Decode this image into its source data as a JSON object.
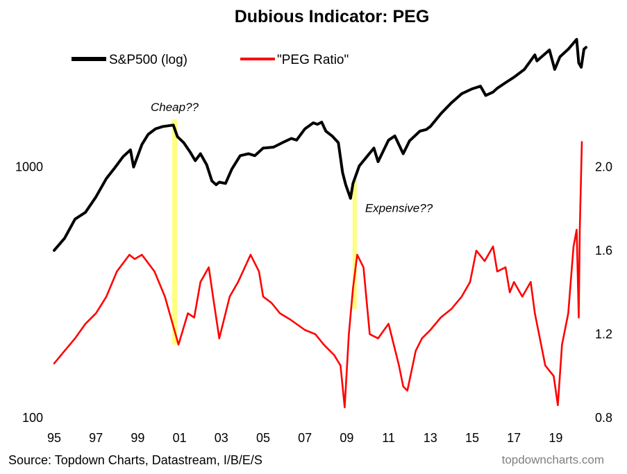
{
  "chart_data": {
    "type": "line",
    "title": "Dubious Indicator: PEG",
    "source": "Source: Topdown Charts, Datastream, I/B/E/S",
    "brand": "topdowncharts.com",
    "x_tick_labels": [
      "95",
      "97",
      "99",
      "01",
      "03",
      "05",
      "07",
      "09",
      "11",
      "13",
      "15",
      "17",
      "19"
    ],
    "x_tick_years": [
      1995,
      1997,
      1999,
      2001,
      2003,
      2005,
      2007,
      2009,
      2011,
      2013,
      2015,
      2017,
      2019
    ],
    "x_range": [
      1995.0,
      2020.25
    ],
    "left_axis": {
      "scale": "log",
      "range": [
        100,
        3162
      ],
      "ticks": [
        100,
        1000
      ],
      "tick_labels": [
        "100",
        "1000"
      ]
    },
    "right_axis": {
      "scale": "linear",
      "range": [
        0.8,
        2.6
      ],
      "ticks": [
        0.8,
        1.2,
        1.6,
        2.0
      ],
      "tick_labels": [
        "0.8",
        "1.2",
        "1.6",
        "2.0"
      ]
    },
    "legend_position": "top",
    "grid": false,
    "series": [
      {
        "name": "S&P500 (log)",
        "axis": "left",
        "color": "#000000",
        "x": [
          1995.0,
          1995.5,
          1996.0,
          1996.5,
          1997.0,
          1997.5,
          1997.85,
          1998.3,
          1998.65,
          1998.8,
          1999.2,
          1999.5,
          1999.85,
          2000.2,
          2000.7,
          2000.9,
          2001.2,
          2001.5,
          2001.75,
          2002.0,
          2002.3,
          2002.55,
          2002.75,
          2002.9,
          2003.2,
          2003.5,
          2003.9,
          2004.3,
          2004.6,
          2005.0,
          2005.5,
          2006.0,
          2006.35,
          2006.6,
          2007.0,
          2007.4,
          2007.6,
          2007.8,
          2008.0,
          2008.3,
          2008.6,
          2008.8,
          2008.95,
          2009.18,
          2009.3,
          2009.6,
          2010.0,
          2010.3,
          2010.5,
          2011.0,
          2011.3,
          2011.7,
          2012.0,
          2012.5,
          2012.8,
          2013.0,
          2013.5,
          2014.0,
          2014.5,
          2015.0,
          2015.4,
          2015.65,
          2016.0,
          2016.2,
          2016.6,
          2017.0,
          2017.5,
          2018.0,
          2018.1,
          2018.7,
          2018.95,
          2019.2,
          2019.6,
          2020.0,
          2020.1,
          2020.22,
          2020.35,
          2020.45
        ],
        "y": [
          465,
          520,
          620,
          660,
          760,
          900,
          980,
          1100,
          1170,
          1000,
          1230,
          1350,
          1420,
          1450,
          1470,
          1320,
          1250,
          1150,
          1060,
          1130,
          1020,
          880,
          850,
          870,
          860,
          980,
          1110,
          1130,
          1110,
          1190,
          1200,
          1260,
          1300,
          1280,
          1420,
          1500,
          1480,
          1510,
          1390,
          1330,
          1250,
          950,
          850,
          750,
          860,
          1010,
          1110,
          1190,
          1050,
          1280,
          1330,
          1130,
          1270,
          1390,
          1410,
          1450,
          1630,
          1800,
          1960,
          2050,
          2100,
          1930,
          1990,
          2060,
          2170,
          2280,
          2450,
          2800,
          2650,
          2930,
          2450,
          2750,
          2950,
          3230,
          2600,
          2500,
          2950,
          3000
        ]
      },
      {
        "name": "\"PEG Ratio\"",
        "axis": "right",
        "color": "#ff0000",
        "x": [
          1995.0,
          1995.5,
          1996.0,
          1996.5,
          1997.0,
          1997.5,
          1998.0,
          1998.6,
          1998.85,
          1999.2,
          1999.8,
          2000.3,
          2000.75,
          2000.95,
          2001.4,
          2001.7,
          2002.0,
          2002.4,
          2002.6,
          2002.9,
          2003.4,
          2003.8,
          2004.4,
          2004.8,
          2005.0,
          2005.4,
          2005.8,
          2006.3,
          2007.0,
          2007.5,
          2007.9,
          2008.4,
          2008.7,
          2008.9,
          2009.1,
          2009.3,
          2009.5,
          2009.8,
          2010.1,
          2010.5,
          2011.0,
          2011.5,
          2011.7,
          2011.9,
          2012.3,
          2012.6,
          2013.0,
          2013.5,
          2014.0,
          2014.5,
          2014.9,
          2015.2,
          2015.6,
          2016.0,
          2016.2,
          2016.6,
          2016.8,
          2017.0,
          2017.4,
          2017.8,
          2018.0,
          2018.5,
          2018.9,
          2019.1,
          2019.3,
          2019.6,
          2019.85,
          2020.0,
          2020.1,
          2020.15,
          2020.25
        ],
        "y": [
          1.06,
          1.12,
          1.18,
          1.25,
          1.3,
          1.38,
          1.5,
          1.58,
          1.56,
          1.58,
          1.5,
          1.38,
          1.22,
          1.15,
          1.3,
          1.28,
          1.45,
          1.52,
          1.38,
          1.18,
          1.38,
          1.45,
          1.58,
          1.5,
          1.38,
          1.35,
          1.3,
          1.27,
          1.22,
          1.2,
          1.15,
          1.1,
          1.05,
          0.85,
          1.2,
          1.42,
          1.58,
          1.52,
          1.2,
          1.18,
          1.25,
          1.05,
          0.95,
          0.93,
          1.12,
          1.18,
          1.22,
          1.28,
          1.32,
          1.38,
          1.45,
          1.6,
          1.55,
          1.62,
          1.5,
          1.52,
          1.4,
          1.45,
          1.38,
          1.45,
          1.3,
          1.05,
          1.0,
          0.86,
          1.15,
          1.3,
          1.62,
          1.7,
          1.28,
          1.7,
          2.12
        ]
      }
    ],
    "highlights": [
      {
        "x_start": 2000.65,
        "x_end": 2000.88,
        "y_left_start": 1550,
        "y_right_end": 1.15,
        "label": "Cheap??",
        "color": "#ffff66"
      },
      {
        "x_start": 2009.28,
        "x_end": 2009.48,
        "y_left_start": 880,
        "y_right_end": 1.32,
        "label": "Expensive??",
        "color": "#ffff66"
      }
    ]
  }
}
